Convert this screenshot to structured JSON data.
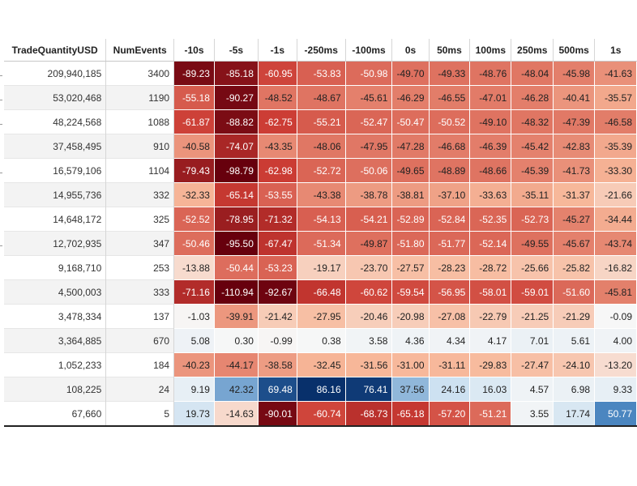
{
  "chart_data": {
    "type": "heatmap",
    "row_headers": [
      "TradeQuantityUSD",
      "NumEvents"
    ],
    "columns": [
      "-10s",
      "-5s",
      "-1s",
      "-250ms",
      "-100ms",
      "0s",
      "50ms",
      "100ms",
      "250ms",
      "500ms",
      "1s"
    ],
    "rows": [
      {
        "quantity": "209,940,185",
        "events": "3400",
        "values": [
          -89.23,
          -85.18,
          -60.95,
          -53.83,
          -50.98,
          -49.7,
          -49.33,
          -48.76,
          -48.04,
          -45.98,
          -41.63
        ]
      },
      {
        "quantity": "53,020,468",
        "events": "1190",
        "values": [
          -55.18,
          -90.27,
          -48.52,
          -48.67,
          -45.61,
          -46.29,
          -46.55,
          -47.01,
          -46.28,
          -40.41,
          -35.57
        ]
      },
      {
        "quantity": "48,224,568",
        "events": "1088",
        "values": [
          -61.87,
          -88.82,
          -62.75,
          -55.21,
          -52.47,
          -50.47,
          -50.52,
          -49.1,
          -48.32,
          -47.39,
          -46.58
        ]
      },
      {
        "quantity": "37,458,495",
        "events": "910",
        "values": [
          -40.58,
          -74.07,
          -43.35,
          -48.06,
          -47.95,
          -47.28,
          -46.68,
          -46.39,
          -45.42,
          -42.83,
          -35.39
        ]
      },
      {
        "quantity": "16,579,106",
        "events": "1104",
        "values": [
          -79.43,
          -98.79,
          -62.98,
          -52.72,
          -50.06,
          -49.65,
          -48.89,
          -48.66,
          -45.39,
          -41.73,
          -33.3
        ]
      },
      {
        "quantity": "14,955,736",
        "events": "332",
        "values": [
          -32.33,
          -65.14,
          -53.55,
          -43.38,
          -38.78,
          -38.81,
          -37.1,
          -33.63,
          -35.11,
          -31.37,
          -21.66
        ]
      },
      {
        "quantity": "14,648,172",
        "events": "325",
        "values": [
          -52.52,
          -78.95,
          -71.32,
          -54.13,
          -54.21,
          -52.89,
          -52.84,
          -52.35,
          -52.73,
          -45.27,
          -34.44
        ]
      },
      {
        "quantity": "12,702,935",
        "events": "347",
        "values": [
          -50.46,
          -95.5,
          -67.47,
          -51.34,
          -49.87,
          -51.8,
          -51.77,
          -52.14,
          -49.55,
          -45.67,
          -43.74
        ]
      },
      {
        "quantity": "9,168,710",
        "events": "253",
        "values": [
          -13.88,
          -50.44,
          -53.23,
          -19.17,
          -23.7,
          -27.57,
          -28.23,
          -28.72,
          -25.66,
          -25.82,
          -16.82
        ]
      },
      {
        "quantity": "4,500,003",
        "events": "333",
        "values": [
          -71.16,
          -110.94,
          -92.67,
          -66.48,
          -60.62,
          -59.54,
          -56.95,
          -58.01,
          -59.01,
          -51.6,
          -45.81
        ]
      },
      {
        "quantity": "3,478,334",
        "events": "137",
        "values": [
          -1.03,
          -39.91,
          -21.42,
          -27.95,
          -20.46,
          -20.98,
          -27.08,
          -22.79,
          -21.25,
          -21.29,
          -0.09
        ]
      },
      {
        "quantity": "3,364,885",
        "events": "670",
        "values": [
          5.08,
          0.3,
          -0.99,
          0.38,
          3.58,
          4.36,
          4.34,
          4.17,
          7.01,
          5.61,
          4.0
        ]
      },
      {
        "quantity": "1,052,233",
        "events": "184",
        "values": [
          -40.23,
          -44.17,
          -38.58,
          -32.45,
          -31.56,
          -31.0,
          -31.11,
          -29.83,
          -27.47,
          -24.1,
          -13.2
        ]
      },
      {
        "quantity": "108,225",
        "events": "24",
        "values": [
          9.19,
          42.32,
          69.48,
          86.16,
          76.41,
          37.56,
          24.16,
          16.03,
          4.57,
          6.98,
          9.33
        ]
      },
      {
        "quantity": "67,660",
        "events": "5",
        "values": [
          19.73,
          -14.63,
          -90.01,
          -60.74,
          -68.73,
          -65.18,
          -57.2,
          -51.21,
          3.55,
          17.74,
          50.77
        ]
      }
    ],
    "colormap": "diverging red (negative) / white (zero) / blue (positive)",
    "colors": {
      "neg_strong": "#67000d",
      "neg_mid": "#cb3b33",
      "neg_light": "#f7b799",
      "zero": "#f7f7f7",
      "pos_light": "#c9dff0",
      "pos_mid": "#3e7dbb",
      "pos_strong": "#08306b"
    },
    "value_range": [
      -110.94,
      86.16
    ]
  }
}
